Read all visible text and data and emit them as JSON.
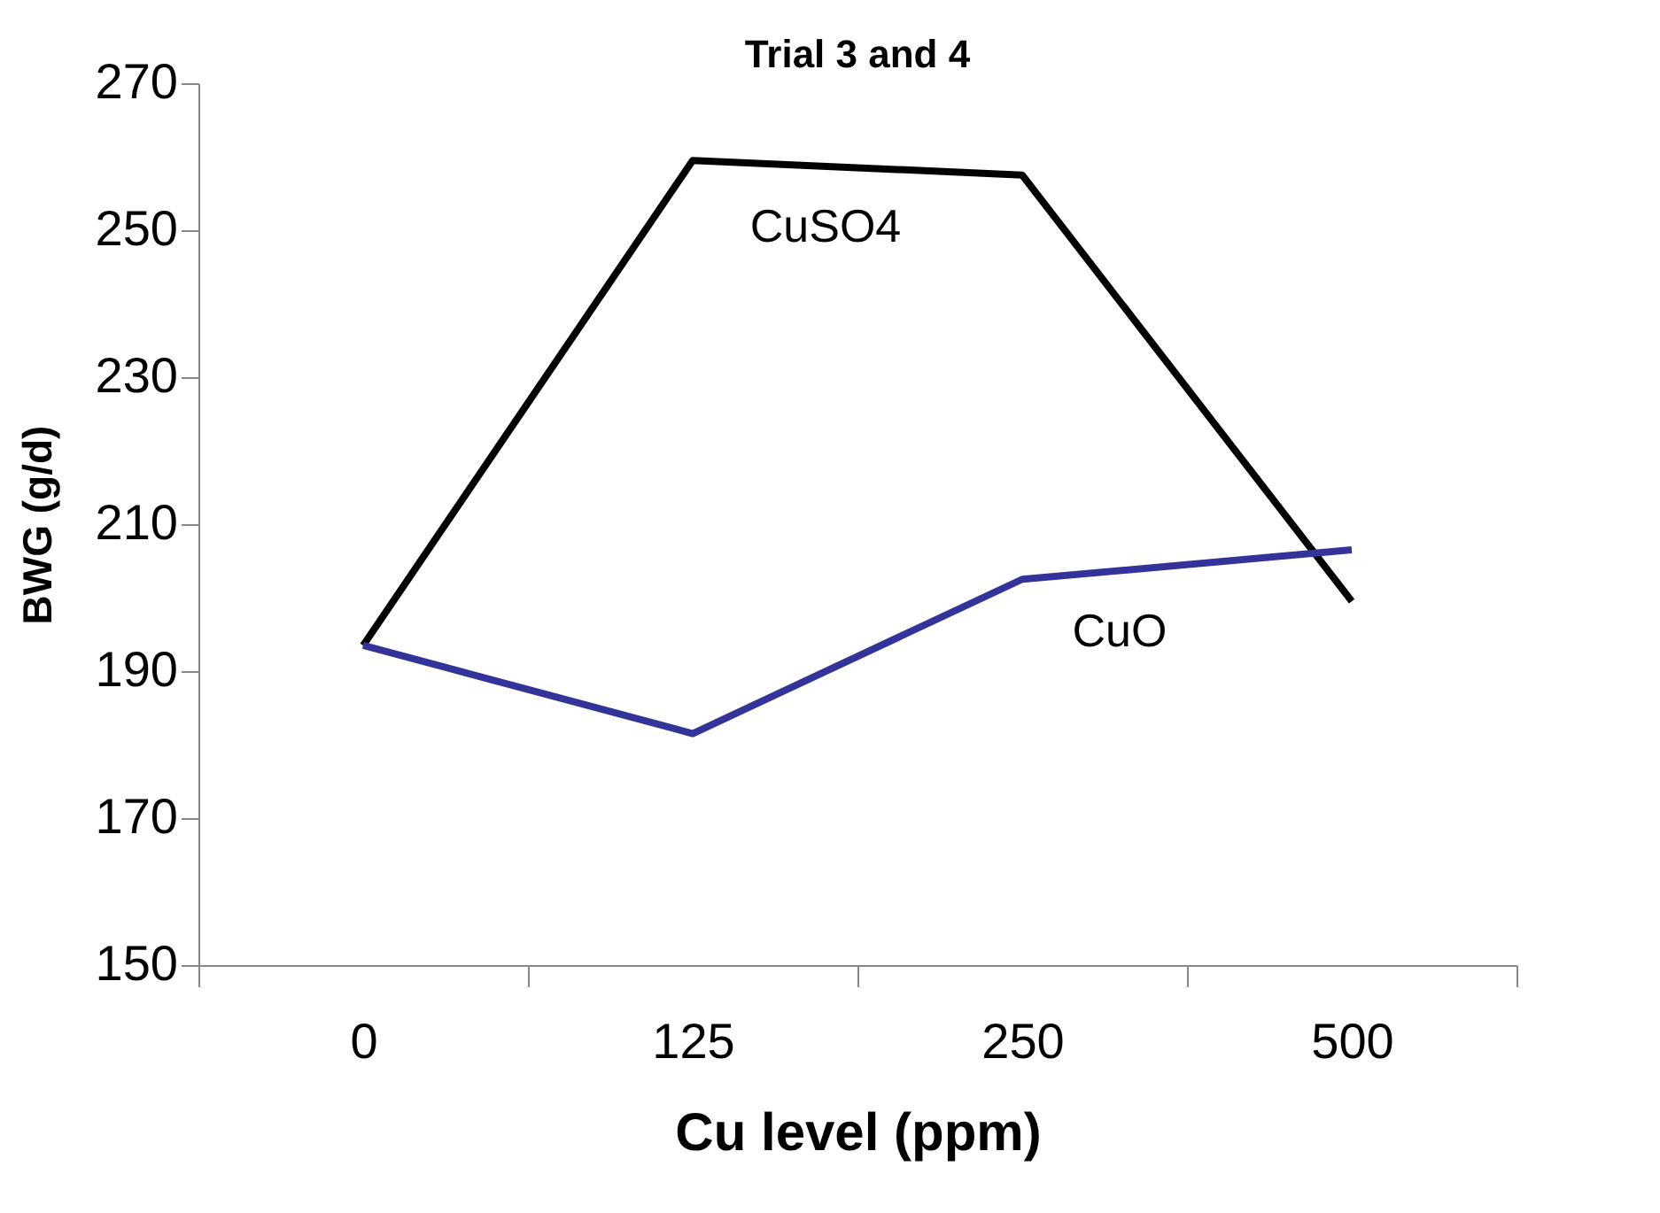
{
  "chart_data": {
    "type": "line",
    "title": "Trial 3 and 4",
    "xlabel": "Cu level (ppm)",
    "ylabel": "BWG (g/d)",
    "categories": [
      "0",
      "125",
      "250",
      "500"
    ],
    "series": [
      {
        "name": "CuSO4",
        "color": "#000000",
        "values": [
          193.5,
          259.5,
          257.5,
          199.5
        ]
      },
      {
        "name": "CuO",
        "color": "#333399",
        "values": [
          193.5,
          181.5,
          202.5,
          206.5
        ]
      }
    ],
    "ylim": [
      150,
      270
    ],
    "yticks": [
      150,
      170,
      190,
      210,
      230,
      250,
      270
    ],
    "grid": false,
    "legend": false,
    "marker": "none",
    "line_style": "solid"
  }
}
